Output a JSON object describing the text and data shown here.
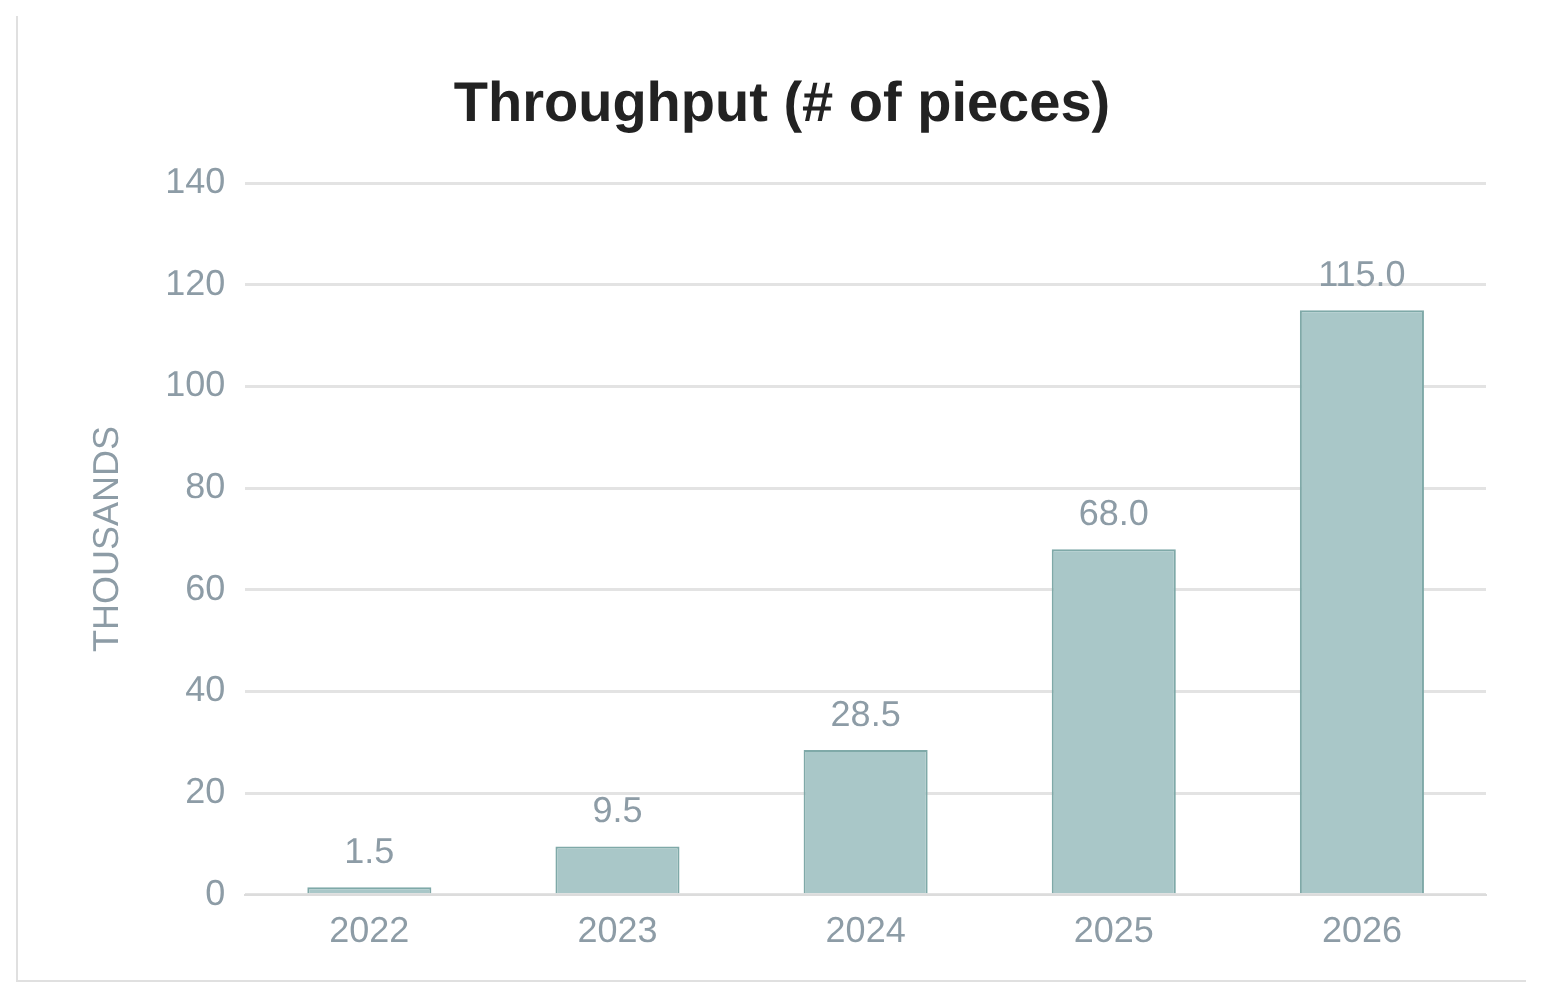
{
  "chart_data": {
    "type": "bar",
    "title": "Throughput (# of pieces)",
    "ylabel": "THOUSANDS",
    "categories": [
      "2022",
      "2023",
      "2024",
      "2025",
      "2026"
    ],
    "values": [
      1.5,
      9.5,
      28.5,
      68,
      115
    ],
    "value_labels": [
      "1.5",
      "9.5",
      "28.5",
      "68.0",
      "115.0"
    ],
    "color": "#a9c7c8",
    "ylim": [
      0,
      140
    ],
    "yticks": [
      0,
      20,
      40,
      60,
      80,
      100,
      120,
      140
    ],
    "grid": "y"
  }
}
